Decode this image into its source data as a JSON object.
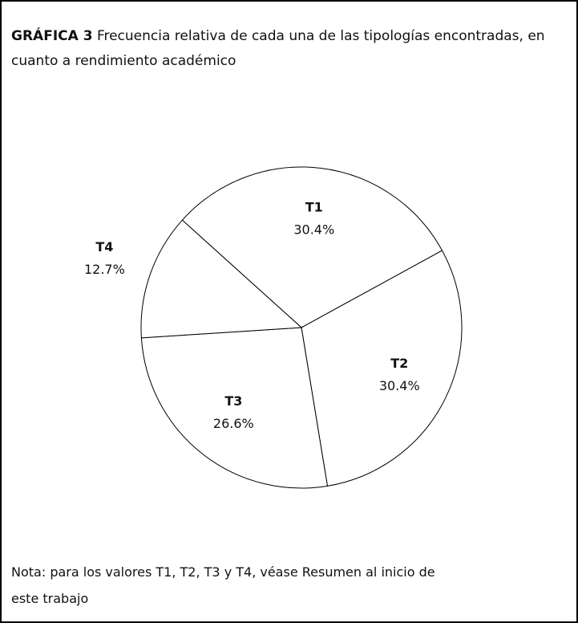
{
  "chart_data": {
    "type": "pie",
    "title_label": "GRÁFICA 3",
    "title": "Frecuencia relativa de cada una de las tipologías encontradas, en cuanto a rendimiento académico",
    "categories": [
      "T1",
      "T2",
      "T3",
      "T4"
    ],
    "values": [
      30.4,
      30.4,
      26.6,
      12.7
    ],
    "value_labels": [
      "30.4%",
      "30.4%",
      "26.6%",
      "12.7%"
    ],
    "color": "#ffffff",
    "note": "Nota: para los valores T1, T2, T3 y T4, véase Resumen al inicio de este trabajo"
  }
}
